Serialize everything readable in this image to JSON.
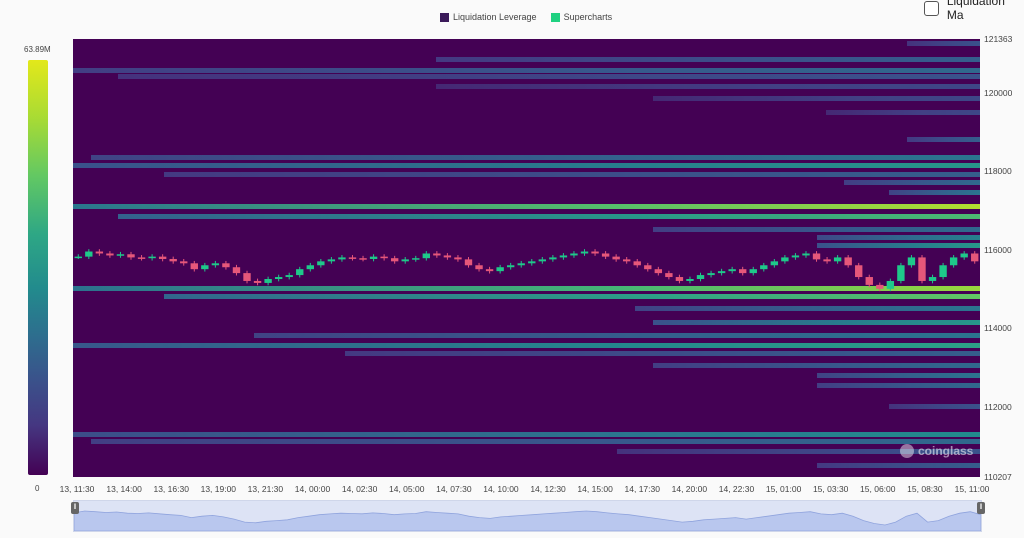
{
  "legend": {
    "items": [
      {
        "label": "Liquidation Leverage",
        "color": "#3b1a5a"
      },
      {
        "label": "Supercharts",
        "color": "#1fd181"
      }
    ]
  },
  "toggle": {
    "label": "Liquidation Ma"
  },
  "colorbar": {
    "max_label": "63.89M",
    "min_label": "0"
  },
  "watermark": {
    "text": "coinglass"
  },
  "chart_data": {
    "type": "heatmap",
    "title": "",
    "xlabel": "",
    "ylabel": "",
    "ylim": [
      110207,
      121363
    ],
    "y_ticks": [
      "121363",
      "120000",
      "118000",
      "116000",
      "114000",
      "112000",
      "110207"
    ],
    "x_ticks": [
      "13, 11:30",
      "13, 14:00",
      "13, 16:30",
      "13, 19:00",
      "13, 21:30",
      "14, 00:00",
      "14, 02:30",
      "14, 05:00",
      "14, 07:30",
      "14, 10:00",
      "14, 12:30",
      "14, 15:00",
      "14, 17:30",
      "14, 20:00",
      "14, 22:30",
      "15, 01:00",
      "15, 03:30",
      "15, 06:00",
      "15, 08:30",
      "15, 11:00"
    ],
    "color_scale": {
      "min": 0,
      "max_label": "63.89M",
      "colormap": "viridis"
    },
    "liquidation_bands": [
      {
        "price": 121250,
        "start": 0.92,
        "intensity": 0.25
      },
      {
        "price": 120850,
        "start": 0.4,
        "intensity": 0.3
      },
      {
        "price": 120550,
        "start": 0.0,
        "intensity": 0.35
      },
      {
        "price": 120400,
        "start": 0.05,
        "intensity": 0.25
      },
      {
        "price": 120150,
        "start": 0.4,
        "intensity": 0.2
      },
      {
        "price": 119850,
        "start": 0.64,
        "intensity": 0.2
      },
      {
        "price": 119500,
        "start": 0.83,
        "intensity": 0.2
      },
      {
        "price": 118800,
        "start": 0.92,
        "intensity": 0.3
      },
      {
        "price": 118350,
        "start": 0.02,
        "intensity": 0.4
      },
      {
        "price": 118150,
        "start": 0.0,
        "intensity": 0.55
      },
      {
        "price": 117900,
        "start": 0.1,
        "intensity": 0.3
      },
      {
        "price": 117700,
        "start": 0.85,
        "intensity": 0.35
      },
      {
        "price": 117450,
        "start": 0.9,
        "intensity": 0.4
      },
      {
        "price": 117100,
        "start": 0.0,
        "intensity": 0.9
      },
      {
        "price": 116850,
        "start": 0.05,
        "intensity": 0.7
      },
      {
        "price": 116500,
        "start": 0.64,
        "intensity": 0.35
      },
      {
        "price": 116300,
        "start": 0.82,
        "intensity": 0.45
      },
      {
        "price": 116100,
        "start": 0.82,
        "intensity": 0.55
      },
      {
        "price": 115000,
        "start": 0.0,
        "intensity": 0.85
      },
      {
        "price": 114800,
        "start": 0.1,
        "intensity": 0.75
      },
      {
        "price": 114500,
        "start": 0.62,
        "intensity": 0.4
      },
      {
        "price": 114150,
        "start": 0.64,
        "intensity": 0.55
      },
      {
        "price": 113800,
        "start": 0.2,
        "intensity": 0.4
      },
      {
        "price": 113550,
        "start": 0.0,
        "intensity": 0.6
      },
      {
        "price": 113350,
        "start": 0.3,
        "intensity": 0.3
      },
      {
        "price": 113050,
        "start": 0.64,
        "intensity": 0.35
      },
      {
        "price": 112800,
        "start": 0.82,
        "intensity": 0.4
      },
      {
        "price": 112550,
        "start": 0.82,
        "intensity": 0.35
      },
      {
        "price": 112000,
        "start": 0.9,
        "intensity": 0.25
      },
      {
        "price": 111300,
        "start": 0.0,
        "intensity": 0.5
      },
      {
        "price": 111100,
        "start": 0.02,
        "intensity": 0.35
      },
      {
        "price": 110850,
        "start": 0.6,
        "intensity": 0.25
      },
      {
        "price": 110500,
        "start": 0.82,
        "intensity": 0.3
      }
    ],
    "price_series": {
      "name": "",
      "close": [
        115820,
        115950,
        115900,
        115850,
        115880,
        115800,
        115780,
        115820,
        115760,
        115700,
        115650,
        115500,
        115600,
        115650,
        115550,
        115400,
        115200,
        115150,
        115250,
        115300,
        115350,
        115500,
        115600,
        115700,
        115750,
        115800,
        115780,
        115760,
        115820,
        115780,
        115700,
        115750,
        115780,
        115900,
        115850,
        115800,
        115750,
        115600,
        115500,
        115450,
        115550,
        115600,
        115650,
        115700,
        115750,
        115800,
        115850,
        115900,
        115950,
        115900,
        115820,
        115750,
        115700,
        115600,
        115500,
        115400,
        115300,
        115200,
        115250,
        115350,
        115400,
        115450,
        115500,
        115400,
        115500,
        115600,
        115700,
        115800,
        115850,
        115900,
        115750,
        115700,
        115800,
        115600,
        115300,
        115100,
        115000,
        115200,
        115600,
        115800,
        115200,
        115300,
        115600,
        115800,
        115900,
        115700
      ]
    }
  }
}
